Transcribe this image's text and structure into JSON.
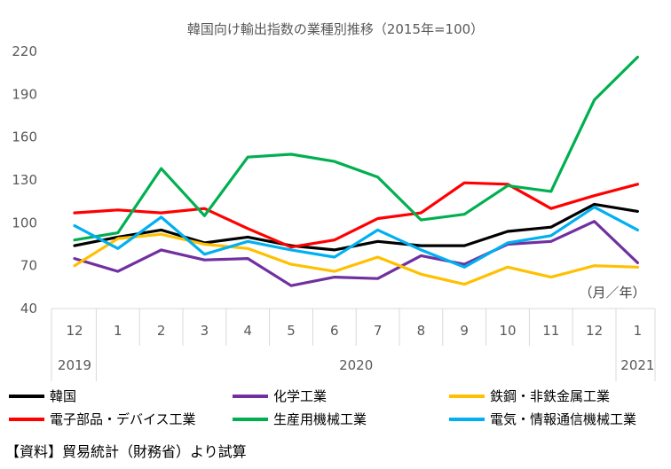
{
  "chart_data": {
    "type": "line",
    "title": "韓国向け輸出指数の業種別推移（2015年=100）",
    "unit_note": "（月／年）",
    "ylim": [
      40,
      220
    ],
    "yticks": [
      "220",
      "190",
      "160",
      "130",
      "100",
      "70",
      "40"
    ],
    "yticks_values": [
      220,
      190,
      160,
      130,
      100,
      70,
      40
    ],
    "months": [
      "12",
      "1",
      "2",
      "3",
      "4",
      "5",
      "6",
      "7",
      "8",
      "9",
      "10",
      "11",
      "12",
      "1"
    ],
    "years": [
      "2019",
      "2020",
      "2021"
    ],
    "grid": false,
    "legend_position": "bottom",
    "series": [
      {
        "name": "韓国",
        "color": "#000000",
        "values": [
          84,
          90,
          95,
          86,
          90,
          84,
          81,
          87,
          84,
          84,
          94,
          97,
          113,
          108
        ]
      },
      {
        "name": "化学工業",
        "color": "#7030a0",
        "values": [
          75,
          66,
          81,
          74,
          75,
          56,
          62,
          61,
          77,
          71,
          85,
          87,
          101,
          72
        ]
      },
      {
        "name": "鉄鋼・非鉄金属工業",
        "color": "#ffc000",
        "values": [
          70,
          89,
          92,
          85,
          82,
          71,
          66,
          76,
          64,
          57,
          69,
          62,
          70,
          69
        ]
      },
      {
        "name": "電子部品・デバイス工業",
        "color": "#ff0000",
        "values": [
          107,
          109,
          107,
          110,
          96,
          83,
          88,
          103,
          107,
          128,
          127,
          110,
          119,
          127
        ]
      },
      {
        "name": "生産用機械工業",
        "color": "#00b050",
        "values": [
          88,
          93,
          138,
          105,
          146,
          148,
          143,
          132,
          102,
          106,
          126,
          122,
          186,
          216
        ]
      },
      {
        "name": "電気・情報通信機械工業",
        "color": "#00b0f0",
        "values": [
          98,
          82,
          104,
          78,
          87,
          81,
          76,
          95,
          81,
          69,
          86,
          91,
          111,
          95
        ]
      }
    ]
  },
  "footer": {
    "source": "【資料】貿易統計（財務省）より試算"
  }
}
